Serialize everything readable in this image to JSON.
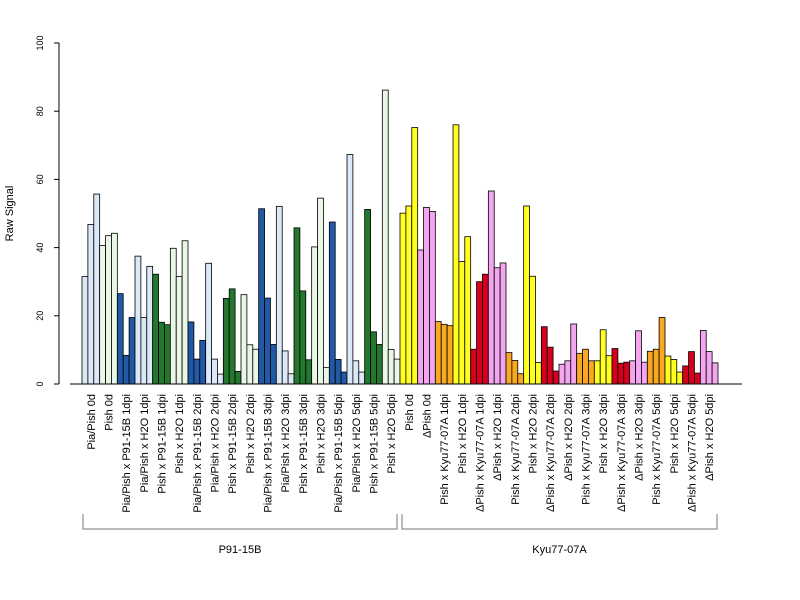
{
  "chart_data": {
    "type": "bar",
    "ylabel": "Raw Signal",
    "ylim": [
      0,
      100
    ],
    "yticks": [
      "0",
      "20",
      "40",
      "60",
      "80",
      "100"
    ],
    "grid": false,
    "legend": "none",
    "categories": [
      "Pia/Pish 0d",
      "Pish 0d",
      "Pia/Pish x P91-15B 1dpi",
      "Pia/Pish x H2O 1dpi",
      "Pish x P91-15B 1dpi",
      "Pish x H2O 1dpi",
      "Pia/Pish x P91-15B 2dpi",
      "Pia/Pish x H2O 2dpi",
      "Pish x P91-15B 2dpi",
      "Pish x H2O 2dpi",
      "Pia/Pish x P91-15B 3dpi",
      "Pia/Pish x H2O 3dpi",
      "Pish x P91-15B 3dpi",
      "Pish x H2O 3dpi",
      "Pia/Pish x P91-15B 5dpi",
      "Pia/Pish x H2O 5dpi",
      "Pish x P91-15B 5dpi",
      "Pish x H2O 5dpi",
      "Pish 0d",
      "ΔPish 0d",
      "Pish x Kyu77-07A 1dpi",
      "Pish x H2O 1dpi",
      "ΔPish x Kyu77-07A 1dpi",
      "ΔPish x H2O 1dpi",
      "Pish x Kyu77-07A 2dpi",
      "Pish x H2O 2dpi",
      "ΔPish x Kyu77-07A 2dpi",
      "ΔPish x H2O 2dpi",
      "Pish x Kyu77-07A 3dpi",
      "Pish x H2O 3dpi",
      "ΔPish x Kyu77-07A 3dpi",
      "ΔPish x H2O 3dpi",
      "Pish x Kyu77-07A 5dpi",
      "Pish x H2O 5dpi",
      "ΔPish x Kyu77-07A 5dpi",
      "ΔPish x H2O 5dpi"
    ],
    "colors": [
      "#dbe8f8",
      "#eaf7e6",
      "#2059a6",
      "#dbe8f8",
      "#23782e",
      "#eaf7e6",
      "#2059a6",
      "#dbe8f8",
      "#23782e",
      "#eaf7e6",
      "#2059a6",
      "#dbe8f8",
      "#23782e",
      "#eaf7e6",
      "#2059a6",
      "#dbe8f8",
      "#23782e",
      "#eaf7e6",
      "#ffff22",
      "#f3a6ef",
      "#f9a822",
      "#ffff22",
      "#d7001c",
      "#f3a6ef",
      "#f9a822",
      "#ffff22",
      "#d7001c",
      "#f3a6ef",
      "#f9a822",
      "#ffff22",
      "#d7001c",
      "#f3a6ef",
      "#f9a822",
      "#ffff22",
      "#d7001c",
      "#f3a6ef"
    ],
    "values": [
      [
        31.5,
        46.8,
        55.7
      ],
      [
        40.6,
        43.5,
        44.2
      ],
      [
        26.5,
        8.4,
        19.5
      ],
      [
        37.5,
        19.5,
        34.5
      ],
      [
        32.2,
        18.1,
        17.4
      ],
      [
        39.8,
        31.5,
        42.0
      ],
      [
        18.2,
        7.3,
        12.8
      ],
      [
        35.4,
        7.3,
        2.9
      ],
      [
        25.1,
        27.9,
        3.7
      ],
      [
        26.2,
        11.5,
        10.2
      ],
      [
        51.4,
        25.2,
        11.6
      ],
      [
        52.1,
        9.7,
        3.0
      ],
      [
        45.8,
        27.3,
        7.1
      ],
      [
        40.2,
        54.5,
        4.8
      ],
      [
        47.5,
        7.2,
        3.5
      ],
      [
        67.3,
        6.8,
        3.5
      ],
      [
        51.2,
        15.3,
        11.6
      ],
      [
        86.2,
        10.1,
        7.3
      ],
      [
        50.1,
        52.2,
        75.2
      ],
      [
        39.3,
        51.8,
        50.6
      ],
      [
        18.3,
        17.5,
        17.1
      ],
      [
        76.0,
        35.9,
        43.2
      ],
      [
        10.2,
        30.0,
        32.2
      ],
      [
        56.6,
        34.1,
        35.5
      ],
      [
        9.2,
        6.9,
        3.0
      ],
      [
        52.2,
        31.6,
        6.3
      ],
      [
        16.8,
        10.8,
        3.8
      ],
      [
        5.8,
        6.8,
        17.6
      ],
      [
        9.0,
        10.2,
        6.8
      ],
      [
        6.8,
        15.9,
        8.3
      ],
      [
        10.4,
        6.1,
        6.4
      ],
      [
        6.8,
        15.6,
        6.4
      ],
      [
        9.6,
        10.2,
        19.5
      ],
      [
        8.2,
        7.2,
        3.5
      ],
      [
        5.3,
        9.5,
        3.2
      ],
      [
        15.7,
        9.5,
        6.2
      ]
    ],
    "groups": [
      {
        "label": "P91-15B"
      },
      {
        "label": "Kyu77-07A"
      }
    ]
  }
}
